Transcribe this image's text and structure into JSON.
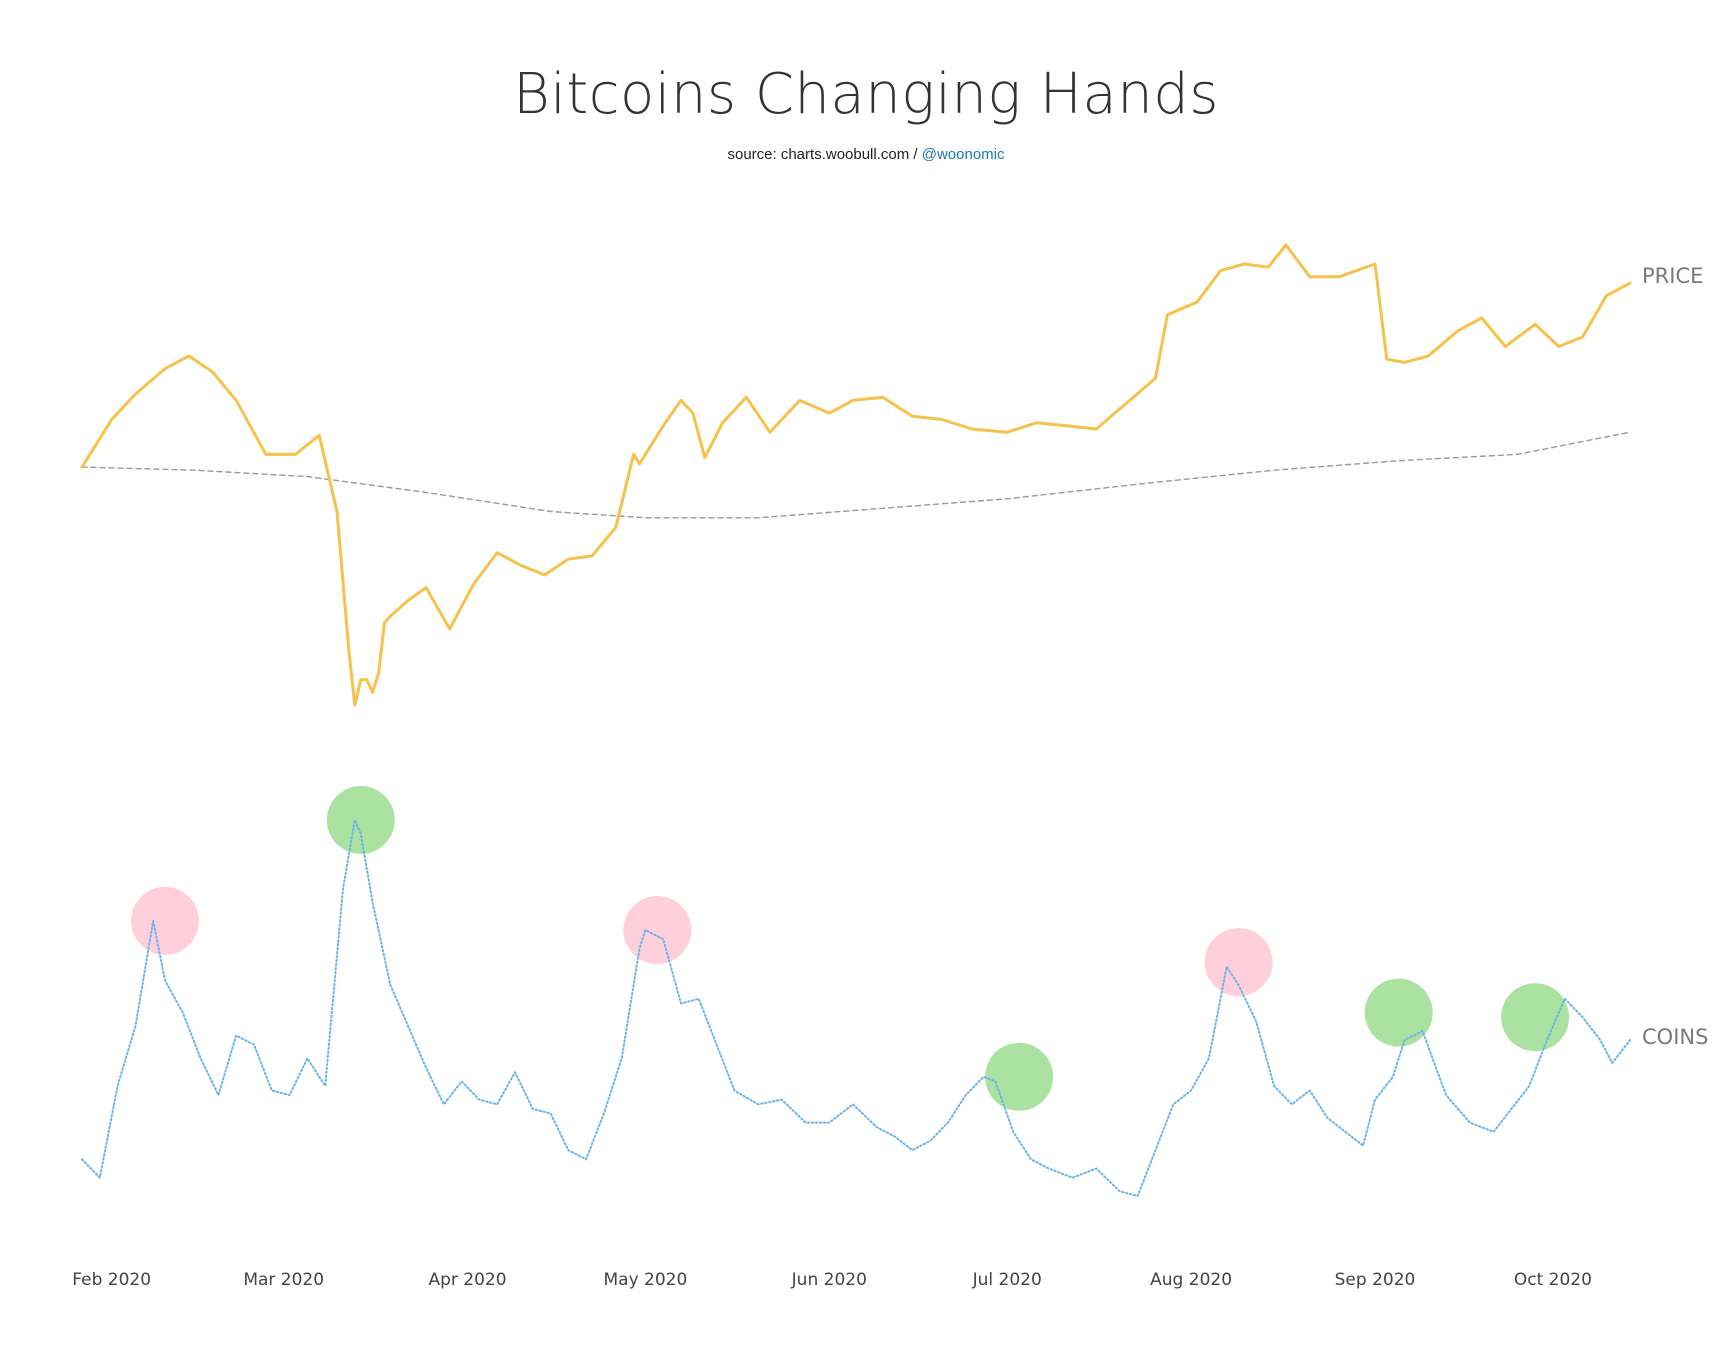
{
  "chart_data": {
    "type": "line",
    "title": "Bitcoins Changing Hands",
    "subtitle": {
      "source": "source: charts.woobull.com / ",
      "handle": "@woonomic"
    },
    "x_ticks": [
      "Feb 2020",
      "Mar 2020",
      "Apr 2020",
      "May 2020",
      "Jun 2020",
      "Jul 2020",
      "Aug 2020",
      "Sep 2020",
      "Oct 2020"
    ],
    "x_range": [
      "2020-01-27",
      "2020-10-14"
    ],
    "grid": false,
    "legend": "none",
    "series": [
      {
        "name": "PRICE",
        "color": "#f5c24c",
        "style": "solid",
        "x": [
          "2020-01-27",
          "2020-02-01",
          "2020-02-05",
          "2020-02-10",
          "2020-02-14",
          "2020-02-18",
          "2020-02-22",
          "2020-02-27",
          "2020-03-03",
          "2020-03-07",
          "2020-03-10",
          "2020-03-12",
          "2020-03-13",
          "2020-03-14",
          "2020-03-15",
          "2020-03-16",
          "2020-03-17",
          "2020-03-18",
          "2020-03-19",
          "2020-03-22",
          "2020-03-25",
          "2020-03-29",
          "2020-04-02",
          "2020-04-06",
          "2020-04-10",
          "2020-04-14",
          "2020-04-18",
          "2020-04-22",
          "2020-04-26",
          "2020-04-29",
          "2020-04-30",
          "2020-05-04",
          "2020-05-07",
          "2020-05-09",
          "2020-05-11",
          "2020-05-14",
          "2020-05-18",
          "2020-05-22",
          "2020-05-27",
          "2020-06-01",
          "2020-06-05",
          "2020-06-10",
          "2020-06-15",
          "2020-06-20",
          "2020-06-25",
          "2020-07-01",
          "2020-07-06",
          "2020-07-11",
          "2020-07-16",
          "2020-07-21",
          "2020-07-26",
          "2020-07-28",
          "2020-08-02",
          "2020-08-06",
          "2020-08-10",
          "2020-08-14",
          "2020-08-17",
          "2020-08-21",
          "2020-08-26",
          "2020-09-01",
          "2020-09-03",
          "2020-09-06",
          "2020-09-10",
          "2020-09-15",
          "2020-09-19",
          "2020-09-23",
          "2020-09-28",
          "2020-10-02",
          "2020-10-06",
          "2020-10-10",
          "2020-10-14"
        ],
        "values": [
          8600,
          9350,
          9750,
          10150,
          10350,
          10100,
          9650,
          8800,
          8800,
          9100,
          7900,
          5700,
          4850,
          5250,
          5250,
          5050,
          5350,
          6150,
          6250,
          6500,
          6700,
          6050,
          6750,
          7250,
          7050,
          6900,
          7150,
          7200,
          7650,
          8800,
          8650,
          9250,
          9650,
          9450,
          8750,
          9300,
          9700,
          9150,
          9650,
          9450,
          9650,
          9700,
          9400,
          9350,
          9200,
          9150,
          9300,
          9250,
          9200,
          9600,
          10000,
          11000,
          11200,
          11700,
          11800,
          11750,
          12100,
          11600,
          11600,
          11800,
          10300,
          10250,
          10350,
          10750,
          10950,
          10500,
          10850,
          10500,
          10650,
          11300,
          11500
        ]
      },
      {
        "name": "",
        "color": "#999999",
        "style": "dashed",
        "x": [
          "2020-01-27",
          "2020-02-15",
          "2020-03-05",
          "2020-03-25",
          "2020-04-15",
          "2020-05-01",
          "2020-05-20",
          "2020-06-10",
          "2020-07-01",
          "2020-07-25",
          "2020-08-15",
          "2020-09-05",
          "2020-09-25",
          "2020-10-14"
        ],
        "values": [
          8600,
          8550,
          8450,
          8200,
          7900,
          7800,
          7800,
          7950,
          8100,
          8350,
          8550,
          8700,
          8800,
          9150
        ]
      },
      {
        "name": "COINS",
        "color": "#6cb4e8",
        "style": "dotted",
        "x": [
          "2020-01-27",
          "2020-01-30",
          "2020-02-02",
          "2020-02-05",
          "2020-02-08",
          "2020-02-10",
          "2020-02-13",
          "2020-02-16",
          "2020-02-19",
          "2020-02-22",
          "2020-02-25",
          "2020-02-28",
          "2020-03-02",
          "2020-03-05",
          "2020-03-08",
          "2020-03-11",
          "2020-03-13",
          "2020-03-14",
          "2020-03-16",
          "2020-03-19",
          "2020-03-22",
          "2020-03-25",
          "2020-03-28",
          "2020-03-31",
          "2020-04-03",
          "2020-04-06",
          "2020-04-09",
          "2020-04-12",
          "2020-04-15",
          "2020-04-18",
          "2020-04-21",
          "2020-04-24",
          "2020-04-27",
          "2020-04-30",
          "2020-05-01",
          "2020-05-04",
          "2020-05-07",
          "2020-05-10",
          "2020-05-13",
          "2020-05-16",
          "2020-05-20",
          "2020-05-24",
          "2020-05-28",
          "2020-06-01",
          "2020-06-05",
          "2020-06-09",
          "2020-06-12",
          "2020-06-15",
          "2020-06-18",
          "2020-06-21",
          "2020-06-24",
          "2020-06-27",
          "2020-06-29",
          "2020-07-02",
          "2020-07-05",
          "2020-07-08",
          "2020-07-12",
          "2020-07-16",
          "2020-07-20",
          "2020-07-23",
          "2020-07-26",
          "2020-07-29",
          "2020-08-01",
          "2020-08-04",
          "2020-08-07",
          "2020-08-09",
          "2020-08-12",
          "2020-08-15",
          "2020-08-18",
          "2020-08-21",
          "2020-08-24",
          "2020-08-27",
          "2020-08-30",
          "2020-09-01",
          "2020-09-04",
          "2020-09-06",
          "2020-09-09",
          "2020-09-13",
          "2020-09-17",
          "2020-09-21",
          "2020-09-24",
          "2020-09-27",
          "2020-09-30",
          "2020-10-03",
          "2020-10-06",
          "2020-10-09",
          "2020-10-11",
          "2020-10-14"
        ],
        "values": [
          26,
          22,
          42,
          55,
          78,
          65,
          58,
          48,
          40,
          53,
          51,
          41,
          40,
          48,
          42,
          85,
          100,
          97,
          82,
          64,
          55,
          46,
          38,
          43,
          39,
          38,
          45,
          37,
          36,
          28,
          26,
          36,
          48,
          72,
          76,
          74,
          60,
          61,
          51,
          41,
          38,
          39,
          34,
          34,
          38,
          33,
          31,
          28,
          30,
          34,
          40,
          44,
          43,
          32,
          26,
          24,
          22,
          24,
          19,
          18,
          28,
          38,
          41,
          48,
          68,
          64,
          56,
          42,
          38,
          41,
          35,
          32,
          29,
          39,
          44,
          52,
          54,
          40,
          34,
          32,
          37,
          42,
          52,
          61,
          57,
          52,
          47,
          52
        ]
      }
    ],
    "highlights": [
      {
        "x": "2020-02-10",
        "y": 78,
        "color": "#ffb6c8"
      },
      {
        "x": "2020-03-14",
        "y": 100,
        "color": "#7fd36e"
      },
      {
        "x": "2020-05-03",
        "y": 76,
        "color": "#ffb6c8"
      },
      {
        "x": "2020-07-03",
        "y": 44,
        "color": "#7fd36e"
      },
      {
        "x": "2020-08-09",
        "y": 69,
        "color": "#ffb6c8"
      },
      {
        "x": "2020-09-05",
        "y": 58,
        "color": "#7fd36e"
      },
      {
        "x": "2020-09-28",
        "y": 57,
        "color": "#7fd36e"
      }
    ]
  }
}
